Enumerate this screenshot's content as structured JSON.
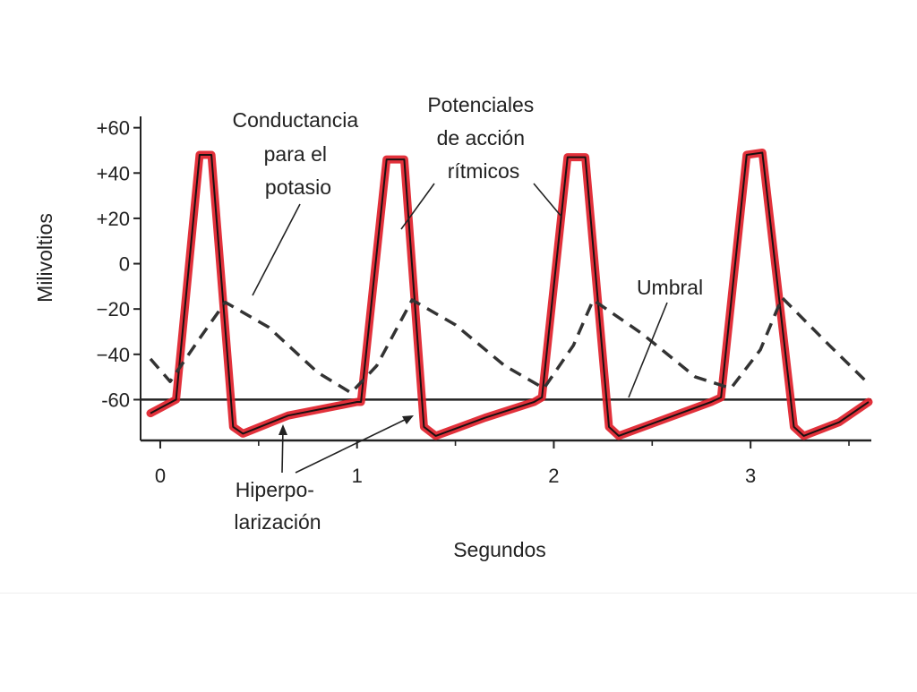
{
  "chart_data": {
    "type": "line",
    "title": "",
    "xlabel": "Segundos",
    "ylabel": "Milivoltios",
    "xlim": [
      -0.1,
      3.6
    ],
    "ylim": [
      -78,
      65
    ],
    "x_ticks": [
      0,
      1,
      2,
      3
    ],
    "x_tick_labels": [
      "0",
      "1",
      "2",
      "3"
    ],
    "x_minor_ticks": [
      0.5,
      1.5,
      2.5,
      3.5
    ],
    "y_ticks": [
      60,
      40,
      20,
      0,
      -20,
      -40,
      -60
    ],
    "y_tick_labels": [
      "+60",
      "+40",
      "+20",
      "0",
      "−20",
      "−40",
      "-60"
    ],
    "grid": false,
    "series": [
      {
        "style": "solid",
        "color": "#e0202a",
        "x": [
          -0.05,
          0.08,
          0.2,
          0.26,
          0.37,
          0.42,
          0.65,
          1.0,
          1.02,
          1.15,
          1.24,
          1.34,
          1.4,
          1.65,
          1.9,
          1.94,
          2.07,
          2.16,
          2.28,
          2.33,
          2.55,
          2.8,
          2.85,
          2.98,
          3.06,
          3.22,
          3.27,
          3.45,
          3.6
        ],
        "values": [
          -66,
          -60,
          48,
          48,
          -72,
          -75,
          -67,
          -61,
          -61,
          46,
          46,
          -72,
          -76,
          -68,
          -61,
          -59,
          47,
          47,
          -72,
          -76,
          -69,
          -61,
          -59,
          48,
          49,
          -72,
          -76,
          -70,
          -61
        ]
      },
      {
        "style": "dashed",
        "color": "#333333",
        "x": [
          -0.05,
          0.05,
          0.2,
          0.33,
          0.55,
          0.8,
          0.97,
          1.1,
          1.28,
          1.5,
          1.75,
          1.95,
          2.1,
          2.2,
          2.45,
          2.72,
          2.9,
          3.05,
          3.16,
          3.4,
          3.6
        ],
        "values": [
          -42,
          -52,
          -33,
          -17,
          -28,
          -48,
          -57,
          -45,
          -16,
          -27,
          -45,
          -55,
          -36,
          -16,
          -31,
          -50,
          -55,
          -38,
          -15,
          -36,
          -53
        ]
      }
    ],
    "reference_line": {
      "y": -60
    },
    "annotations": [
      {
        "lines": [
          "Conductancia",
          "para el",
          "potasio"
        ]
      },
      {
        "lines": [
          "Potenciales",
          "de acción",
          "rítmicos"
        ]
      },
      {
        "lines": [
          "Umbral"
        ]
      },
      {
        "lines": [
          "Hiperpo-",
          "larización"
        ]
      }
    ]
  }
}
